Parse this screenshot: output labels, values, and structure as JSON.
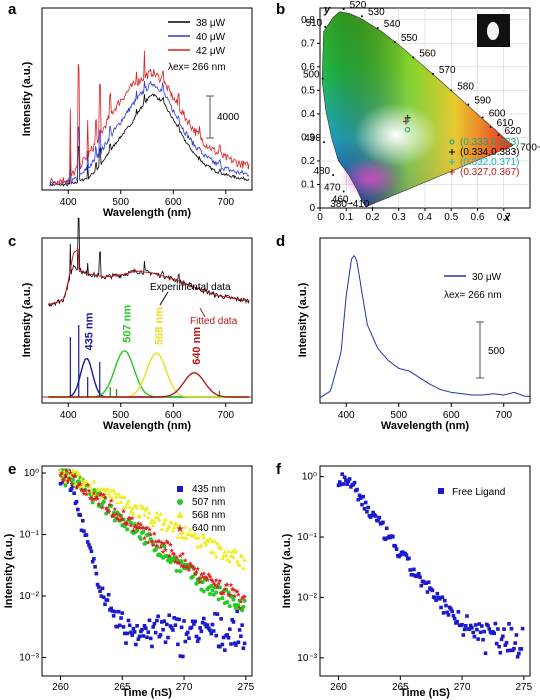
{
  "panels": {
    "a": {
      "label": "a",
      "ylabel": "Intensity (a.u.)",
      "xlabel": "Wavelength (nm)",
      "xticks": [
        400,
        500,
        600,
        700
      ],
      "legend": [
        "38 μW",
        "40 μW",
        "42 μW"
      ],
      "legend_colors": [
        "#000000",
        "#2b3bd6",
        "#e02020"
      ],
      "excitation": "λex= 266 nm",
      "scalebar": "4000"
    },
    "b": {
      "label": "b",
      "xlabel": "x",
      "ylabel": "y",
      "xticks": [
        "0",
        "0.1",
        "0.2",
        "0.3",
        "0.4",
        "0.5",
        "0.6",
        "0.7"
      ],
      "yticks": [
        "0",
        "0.1",
        "0.2",
        "0.3",
        "0.4",
        "0.5",
        "0.6",
        "0.7",
        "0.8"
      ],
      "wl_labels": [
        "520",
        "530",
        "540",
        "550",
        "560",
        "570",
        "580",
        "590",
        "600",
        "610",
        "620",
        "700~780",
        "510",
        "500",
        "490",
        "480",
        "470",
        "460",
        "380~410"
      ],
      "points": [
        {
          "label": "(0.333,0.333)",
          "color": "#1aa37a",
          "marker": "o"
        },
        {
          "label": "(0.334,0.383)",
          "color": "#000000",
          "marker": "+"
        },
        {
          "label": "(0.332,0.371)",
          "color": "#18b8c8",
          "marker": "+"
        },
        {
          "label": "(0.327,0.367)",
          "color": "#c81818",
          "marker": "+"
        }
      ]
    },
    "c": {
      "label": "c",
      "ylabel": "Intensity (a.u.)",
      "xlabel": "Wavelength (nm)",
      "xticks": [
        400,
        500,
        600,
        700
      ],
      "annot_exp": "Experimental data",
      "annot_fit": "Fitted data",
      "peaks": [
        {
          "label": "435 nm",
          "color": "#1a1a9a"
        },
        {
          "label": "507 nm",
          "color": "#22cc22"
        },
        {
          "label": "568 nm",
          "color": "#e8e020"
        },
        {
          "label": "640 nm",
          "color": "#b81818"
        }
      ]
    },
    "d": {
      "label": "d",
      "ylabel": "Intensity (a.u.)",
      "xlabel": "Wavelength (nm)",
      "xticks": [
        400,
        500,
        600,
        700
      ],
      "legend": "30 μW",
      "excitation": "λex= 266 nm",
      "scalebar": "500"
    },
    "e": {
      "label": "e",
      "ylabel": "Intensity (a.u.)",
      "xlabel": "Time (nS)",
      "xticks": [
        260,
        265,
        270,
        275
      ],
      "yticks": [
        "10⁰",
        "10⁻¹",
        "10⁻²",
        "10⁻³"
      ],
      "legend": [
        "435 nm",
        "507 nm",
        "568 nm",
        "640 nm"
      ],
      "legend_colors": [
        "#1a1acc",
        "#22cc22",
        "#eeee22",
        "#dd2222"
      ]
    },
    "f": {
      "label": "f",
      "ylabel": "Intensity (a.u.)",
      "xlabel": "Time (nS)",
      "xticks": [
        260,
        265,
        270,
        275
      ],
      "yticks": [
        "10⁰",
        "10⁻¹",
        "10⁻²",
        "10⁻³"
      ],
      "legend": "Free Ligand",
      "legend_color": "#1a1acc"
    }
  },
  "chart_data": [
    {
      "type": "line",
      "panel": "a",
      "xlabel": "Wavelength (nm)",
      "ylabel": "Intensity (a.u.)",
      "xlim": [
        350,
        750
      ],
      "x": [
        360,
        400,
        420,
        440,
        460,
        480,
        500,
        520,
        540,
        560,
        580,
        600,
        620,
        640,
        660,
        680,
        700,
        720,
        740
      ],
      "series": [
        {
          "name": "38 μW",
          "values": [
            50,
            60,
            200,
            420,
            900,
            1650,
            2300,
            2900,
            3700,
            4300,
            3900,
            3100,
            2200,
            1500,
            1000,
            700,
            520,
            400,
            320
          ]
        },
        {
          "name": "40 μW",
          "values": [
            80,
            120,
            400,
            900,
            1500,
            2300,
            3000,
            3700,
            4300,
            4800,
            4400,
            3500,
            2600,
            1900,
            1400,
            1050,
            800,
            650,
            560
          ]
        },
        {
          "name": "42 μW",
          "values": [
            180,
            300,
            900,
            1500,
            2300,
            3300,
            4000,
            4600,
            5000,
            5300,
            4900,
            4100,
            3300,
            2600,
            2000,
            1600,
            1300,
            1100,
            950
          ]
        }
      ]
    },
    {
      "type": "scatter",
      "panel": "b",
      "xlabel": "x",
      "ylabel": "y",
      "xlim": [
        0,
        0.8
      ],
      "ylim": [
        0,
        0.85
      ],
      "series": [
        {
          "name": "(0.333,0.333)",
          "values": [
            [
              0.333,
              0.333
            ]
          ]
        },
        {
          "name": "(0.334,0.383)",
          "values": [
            [
              0.334,
              0.383
            ]
          ]
        },
        {
          "name": "(0.332,0.371)",
          "values": [
            [
              0.332,
              0.371
            ]
          ]
        },
        {
          "name": "(0.327,0.367)",
          "values": [
            [
              0.327,
              0.367
            ]
          ]
        }
      ]
    },
    {
      "type": "line",
      "panel": "c",
      "xlabel": "Wavelength (nm)",
      "ylabel": "Intensity (a.u.)",
      "xlim": [
        350,
        750
      ],
      "peaks_nm": [
        435,
        507,
        568,
        640
      ],
      "peak_heights": [
        0.35,
        0.42,
        0.4,
        0.22
      ]
    },
    {
      "type": "line",
      "panel": "d",
      "xlabel": "Wavelength (nm)",
      "ylabel": "Intensity (a.u.)",
      "xlim": [
        350,
        750
      ],
      "x": [
        350,
        370,
        390,
        400,
        410,
        415,
        420,
        430,
        440,
        460,
        480,
        500,
        520,
        540,
        560,
        580,
        600,
        620,
        640,
        660,
        680,
        700,
        720,
        740,
        750
      ],
      "series": [
        {
          "name": "30 μW",
          "values": [
            10,
            60,
            350,
            780,
            1050,
            1080,
            1040,
            800,
            560,
            380,
            290,
            230,
            210,
            160,
            110,
            70,
            50,
            40,
            30,
            30,
            40,
            30,
            50,
            20,
            20
          ]
        }
      ]
    },
    {
      "type": "scatter",
      "panel": "e",
      "xlabel": "Time (nS)",
      "ylabel": "Intensity (a.u.)",
      "xlim": [
        258.5,
        275.5
      ],
      "ylim": [
        0.0005,
        1.3
      ],
      "ylog": true,
      "series": [
        {
          "name": "435 nm",
          "decay_tau": 0.6,
          "floor": 0.0025
        },
        {
          "name": "507 nm",
          "decay_tau": 2.6,
          "floor": 0.002
        },
        {
          "name": "568 nm",
          "decay_tau": 4.2,
          "floor": 0.004
        },
        {
          "name": "640 nm",
          "decay_tau": 2.8,
          "floor": 0.003
        }
      ]
    },
    {
      "type": "scatter",
      "panel": "f",
      "xlabel": "Time (nS)",
      "ylabel": "Intensity (a.u.)",
      "xlim": [
        258.5,
        275.5
      ],
      "ylim": [
        0.0005,
        1.5
      ],
      "ylog": true,
      "series": [
        {
          "name": "Free Ligand",
          "decay_tau": 1.5,
          "floor": 0.002
        }
      ]
    }
  ]
}
